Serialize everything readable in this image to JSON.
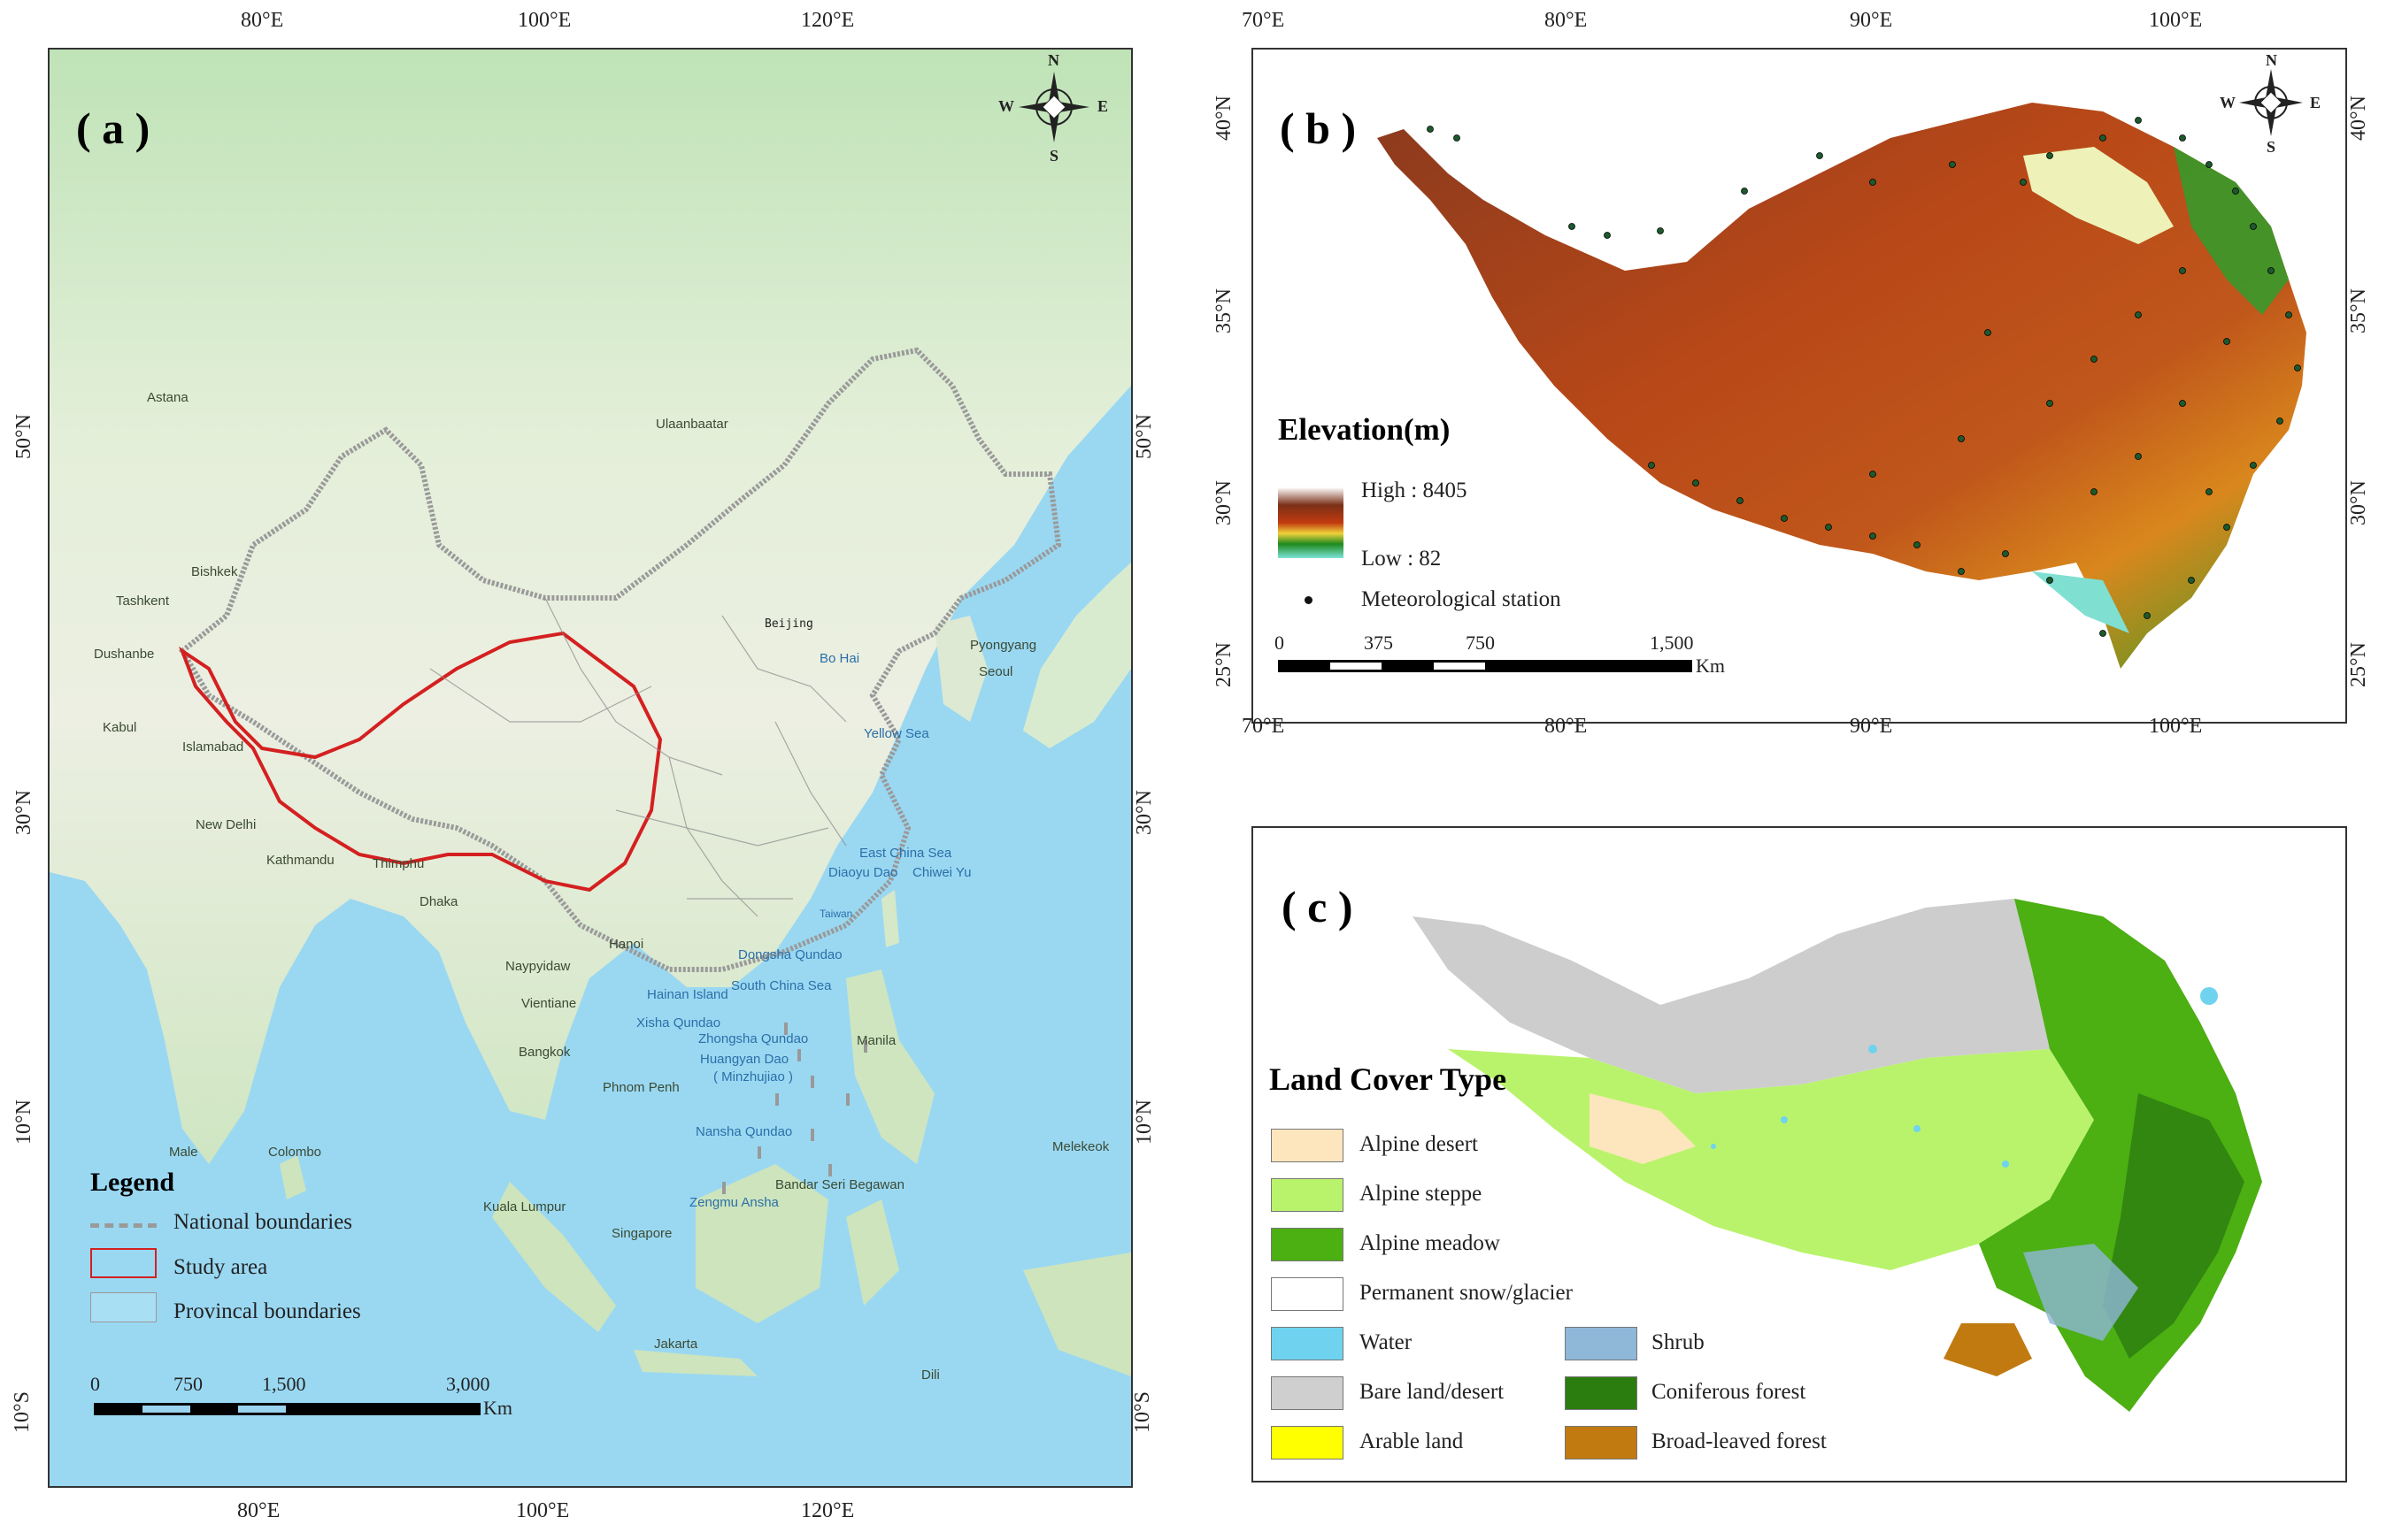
{
  "panel_a": {
    "label": "( a )",
    "top_ticks": [
      "80°E",
      "100°E",
      "120°E"
    ],
    "bottom_ticks": [
      "80°E",
      "100°E",
      "120°E"
    ],
    "left_ticks": [
      "50°N",
      "30°N",
      "10°N",
      "10°S"
    ],
    "right_ticks": [
      "50°N",
      "30°N",
      "10°N",
      "10°S"
    ],
    "cities": [
      "Astana",
      "Ulaanbaatar",
      "Bishkek",
      "Tashkent",
      "Dushanbe",
      "Kabul",
      "Islamabad",
      "New Delhi",
      "Kathmandu",
      "Thimphu",
      "Dhaka",
      "Beijing",
      "Pyongyang",
      "Seoul",
      "Naypyidaw",
      "Hanoi",
      "Vientiane",
      "Bangkok",
      "Phnom Penh",
      "Manila",
      "Male",
      "Colombo",
      "Kuala Lumpur",
      "Singapore",
      "Bandar Seri Begawan",
      "Melekeok",
      "Jakarta",
      "Dili"
    ],
    "seas": [
      "Bo Hai",
      "Yellow Sea",
      "East China Sea",
      "Diaoyu Dao",
      "Chiwei Yu",
      "Taiwan",
      "Dongsha Qundao",
      "South China Sea",
      "Hainan Island",
      "Xisha Qundao",
      "Zhongsha Qundao",
      "Huangyan Dao",
      "( Minzhujiao )",
      "Nansha Qundao",
      "Zengmu Ansha"
    ],
    "legend": {
      "title": "Legend",
      "items": [
        "National boundaries",
        "Study area",
        "Provincal boundaries"
      ]
    },
    "scale": {
      "ticks": [
        "0",
        "750",
        "1,500",
        "3,000"
      ],
      "unit": "Km"
    },
    "compass": {
      "n": "N",
      "s": "S",
      "e": "E",
      "w": "W"
    }
  },
  "panel_b": {
    "label": "( b )",
    "top_ticks": [
      "70°E",
      "80°E",
      "90°E",
      "100°E"
    ],
    "bottom_ticks": [
      "70°E",
      "80°E",
      "90°E",
      "100°E"
    ],
    "left_ticks": [
      "40°N",
      "35°N",
      "30°N",
      "25°N"
    ],
    "right_ticks": [
      "40°N",
      "35°N",
      "30°N",
      "25°N"
    ],
    "legend": {
      "title": "Elevation(m)",
      "high": "High : 8405",
      "low": "Low : 82",
      "station": "Meteorological station"
    },
    "scale": {
      "ticks": [
        "0",
        "375",
        "750",
        "1,500"
      ],
      "unit": "Km"
    },
    "compass": {
      "n": "N",
      "s": "S",
      "e": "E",
      "w": "W"
    }
  },
  "panel_c": {
    "label": "( c )",
    "legend": {
      "title": "Land Cover Type",
      "items": [
        {
          "name": "Alpine desert",
          "color": "#fde6bd"
        },
        {
          "name": "Alpine steppe",
          "color": "#b9f36b"
        },
        {
          "name": "Alpine meadow",
          "color": "#4caf12"
        },
        {
          "name": "Permanent snow/glacier",
          "color": "#ffffff"
        },
        {
          "name": "Water",
          "color": "#6fd3ef"
        },
        {
          "name": "Bare land/desert",
          "color": "#cfcfcf"
        },
        {
          "name": "Arable land",
          "color": "#ffff00"
        },
        {
          "name": "Shrub",
          "color": "#8fb7d8"
        },
        {
          "name": "Coniferous forest",
          "color": "#2c7d10"
        },
        {
          "name": "Broad-leaved forest",
          "color": "#c07a10"
        }
      ]
    }
  }
}
